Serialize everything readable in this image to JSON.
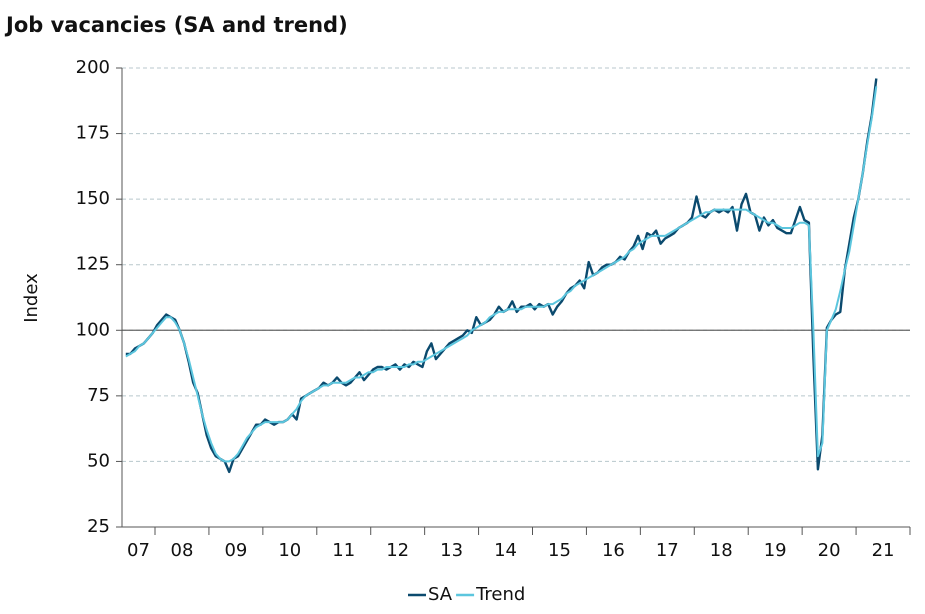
{
  "chart_data": {
    "type": "line",
    "title": "Job vacancies (SA and trend)",
    "y_label": "Index",
    "categories": [
      "07",
      "08",
      "09",
      "10",
      "11",
      "12",
      "13",
      "14",
      "15",
      "16",
      "17",
      "18",
      "19",
      "20",
      "21"
    ],
    "series": [
      {
        "name": "SA",
        "color": "#0b4a6e",
        "values": [
          [
            91,
            91,
            93,
            94,
            95,
            97,
            99
          ],
          [
            102,
            104,
            106,
            105,
            104,
            100,
            95,
            88,
            80,
            76,
            68,
            60
          ],
          [
            55,
            52,
            51,
            50,
            46,
            51,
            52,
            55,
            58,
            61,
            64,
            64
          ],
          [
            66,
            65,
            64,
            65,
            65,
            66,
            68,
            66,
            74,
            75,
            76,
            77
          ],
          [
            78,
            80,
            79,
            80,
            82,
            80,
            79,
            80,
            82,
            84,
            81,
            83
          ],
          [
            85,
            86,
            86,
            85,
            86,
            87,
            85,
            87,
            86,
            88,
            87,
            86
          ],
          [
            92,
            95,
            89,
            91,
            93,
            95,
            96,
            97,
            98,
            100,
            99,
            105
          ],
          [
            102,
            103,
            104,
            106,
            109,
            107,
            108,
            111,
            107,
            109,
            109,
            110
          ],
          [
            108,
            110,
            109,
            110,
            106,
            109,
            111,
            114,
            116,
            117,
            119,
            116
          ],
          [
            126,
            121,
            122,
            124,
            125,
            125,
            126,
            128,
            127,
            130,
            132,
            136
          ],
          [
            131,
            137,
            136,
            138,
            133,
            135,
            136,
            137,
            139,
            140,
            141,
            143
          ],
          [
            151,
            144,
            143,
            145,
            146,
            145,
            146,
            145,
            147,
            138,
            148,
            152
          ],
          [
            145,
            144,
            138,
            143,
            140,
            142,
            139,
            138,
            137,
            137,
            142,
            147
          ],
          [
            142,
            141,
            90,
            47,
            60,
            101,
            104,
            106,
            107,
            123,
            133,
            143
          ],
          [
            150,
            160,
            172,
            182,
            196
          ]
        ]
      },
      {
        "name": "Trend",
        "color": "#5cc6de",
        "values": [
          [
            90,
            91,
            92,
            94,
            95,
            97,
            99
          ],
          [
            101,
            103,
            105,
            105,
            103,
            100,
            95,
            89,
            82,
            75,
            68,
            62
          ],
          [
            57,
            53,
            51,
            50,
            50,
            51,
            53,
            56,
            59,
            61,
            63,
            64
          ],
          [
            65,
            65,
            65,
            65,
            65,
            66,
            68,
            70,
            73,
            75,
            76,
            77
          ],
          [
            78,
            79,
            79,
            80,
            80,
            80,
            80,
            81,
            82,
            82,
            83,
            84
          ],
          [
            84,
            85,
            85,
            86,
            86,
            86,
            86,
            86,
            87,
            87,
            88,
            88
          ],
          [
            89,
            90,
            91,
            92,
            93,
            94,
            95,
            96,
            97,
            98,
            100,
            101
          ],
          [
            102,
            103,
            105,
            106,
            107,
            107,
            108,
            108,
            108,
            108,
            109,
            109
          ],
          [
            109,
            109,
            109,
            110,
            110,
            111,
            112,
            114,
            115,
            117,
            118,
            119
          ],
          [
            120,
            121,
            122,
            123,
            124,
            125,
            126,
            127,
            128,
            130,
            131,
            133
          ],
          [
            134,
            135,
            136,
            136,
            136,
            136,
            137,
            138,
            139,
            140,
            141,
            142
          ],
          [
            143,
            144,
            145,
            145,
            146,
            146,
            146,
            146,
            146,
            146,
            146,
            146
          ],
          [
            145,
            144,
            143,
            142,
            141,
            141,
            140,
            139,
            139,
            139,
            140,
            141
          ],
          [
            141,
            140,
            100,
            52,
            57,
            100,
            104,
            108,
            115,
            123,
            130,
            140
          ],
          [
            150,
            160,
            171,
            181,
            193
          ]
        ]
      }
    ],
    "ylim": [
      25,
      200
    ],
    "yticks": [
      25,
      50,
      75,
      100,
      125,
      150,
      175,
      200
    ],
    "hline": 100,
    "grid": true,
    "legend": "bottom"
  }
}
